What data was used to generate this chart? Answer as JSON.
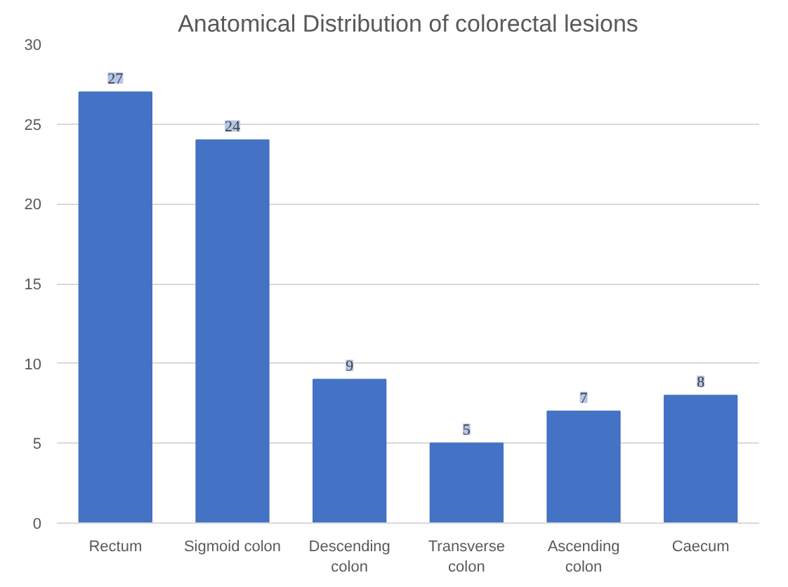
{
  "chart_data": {
    "type": "bar",
    "title": "Anatomical Distribution of colorectal lesions",
    "categories": [
      "Rectum",
      "Sigmoid colon",
      "Descending colon",
      "Transverse colon",
      "Ascending colon",
      "Caecum"
    ],
    "values": [
      27,
      24,
      9,
      5,
      7,
      8
    ],
    "color": "#4472c4",
    "ylim": [
      0,
      30
    ],
    "yticks": [
      0,
      5,
      10,
      15,
      20,
      25,
      30
    ],
    "grid": "y",
    "data_labels": true
  }
}
